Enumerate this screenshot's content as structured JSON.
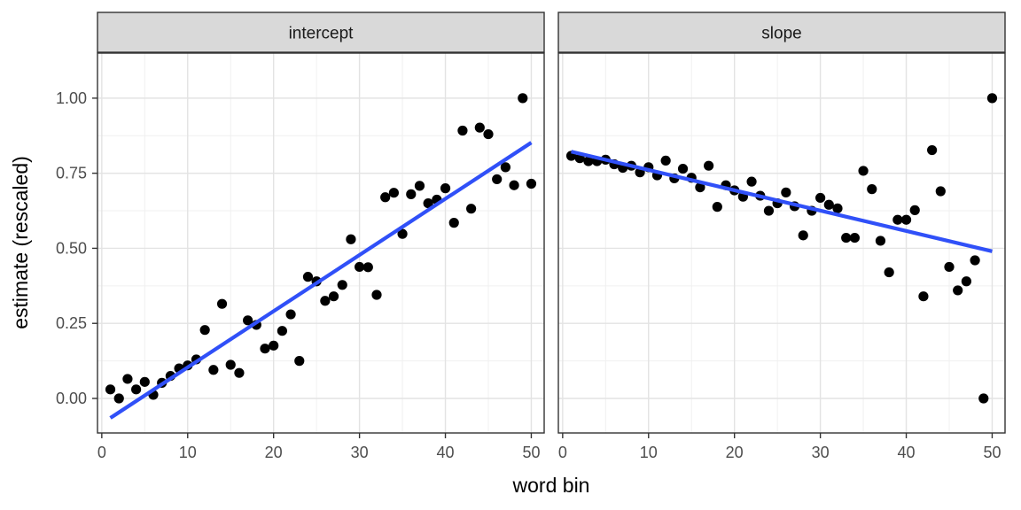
{
  "chart_data": {
    "type": "scatter",
    "xlabel": "word bin",
    "ylabel": "estimate (rescaled)",
    "xlim": [
      -0.5,
      51.5
    ],
    "ylim": [
      -0.115,
      1.15
    ],
    "x_ticks": [
      0,
      10,
      20,
      30,
      40,
      50
    ],
    "x_tick_labels": [
      "0",
      "10",
      "20",
      "30",
      "40",
      "50"
    ],
    "y_ticks": [
      0,
      0.25,
      0.5,
      0.75,
      1.0
    ],
    "y_tick_labels": [
      "0.00",
      "0.25",
      "0.50",
      "0.75",
      "1.00"
    ],
    "grid": true,
    "trend_line_color": "#3050f8",
    "point_color": "#000000",
    "panels": [
      {
        "title": "intercept",
        "x": [
          1,
          2,
          3,
          4,
          5,
          6,
          7,
          8,
          9,
          10,
          11,
          12,
          13,
          14,
          15,
          16,
          17,
          18,
          19,
          20,
          21,
          22,
          23,
          24,
          25,
          26,
          27,
          28,
          29,
          30,
          31,
          32,
          33,
          34,
          35,
          36,
          37,
          38,
          39,
          40,
          41,
          42,
          43,
          44,
          45,
          46,
          47,
          48,
          49,
          50
        ],
        "y": [
          0.03,
          0.0,
          0.065,
          0.03,
          0.055,
          0.012,
          0.052,
          0.075,
          0.1,
          0.11,
          0.13,
          0.228,
          0.095,
          0.315,
          0.112,
          0.085,
          0.26,
          0.245,
          0.166,
          0.176,
          0.225,
          0.28,
          0.125,
          0.405,
          0.39,
          0.325,
          0.34,
          0.378,
          0.53,
          0.438,
          0.437,
          0.345,
          0.67,
          0.685,
          0.548,
          0.68,
          0.708,
          0.65,
          0.662,
          0.7,
          0.585,
          0.892,
          0.632,
          0.902,
          0.88,
          0.73,
          0.77,
          0.71,
          1.0,
          0.715
        ],
        "trend": {
          "x": [
            1,
            50
          ],
          "y": [
            -0.065,
            0.852
          ]
        }
      },
      {
        "title": "slope",
        "x": [
          1,
          2,
          3,
          4,
          5,
          6,
          7,
          8,
          9,
          10,
          11,
          12,
          13,
          14,
          15,
          16,
          17,
          18,
          19,
          20,
          21,
          22,
          23,
          24,
          25,
          26,
          27,
          28,
          29,
          30,
          31,
          32,
          33,
          34,
          35,
          36,
          37,
          38,
          39,
          40,
          41,
          42,
          43,
          44,
          45,
          46,
          47,
          48,
          49,
          50
        ],
        "y": [
          0.808,
          0.8,
          0.79,
          0.79,
          0.795,
          0.78,
          0.768,
          0.775,
          0.753,
          0.77,
          0.743,
          0.792,
          0.733,
          0.765,
          0.735,
          0.703,
          0.775,
          0.638,
          0.71,
          0.693,
          0.672,
          0.722,
          0.675,
          0.625,
          0.65,
          0.686,
          0.64,
          0.543,
          0.625,
          0.668,
          0.645,
          0.633,
          0.535,
          0.535,
          0.758,
          0.697,
          0.525,
          0.42,
          0.595,
          0.595,
          0.627,
          0.34,
          0.827,
          0.69,
          0.438,
          0.36,
          0.39,
          0.46,
          0.0,
          1.0
        ],
        "trend": {
          "x": [
            1,
            50
          ],
          "y": [
            0.822,
            0.49
          ]
        }
      }
    ]
  }
}
